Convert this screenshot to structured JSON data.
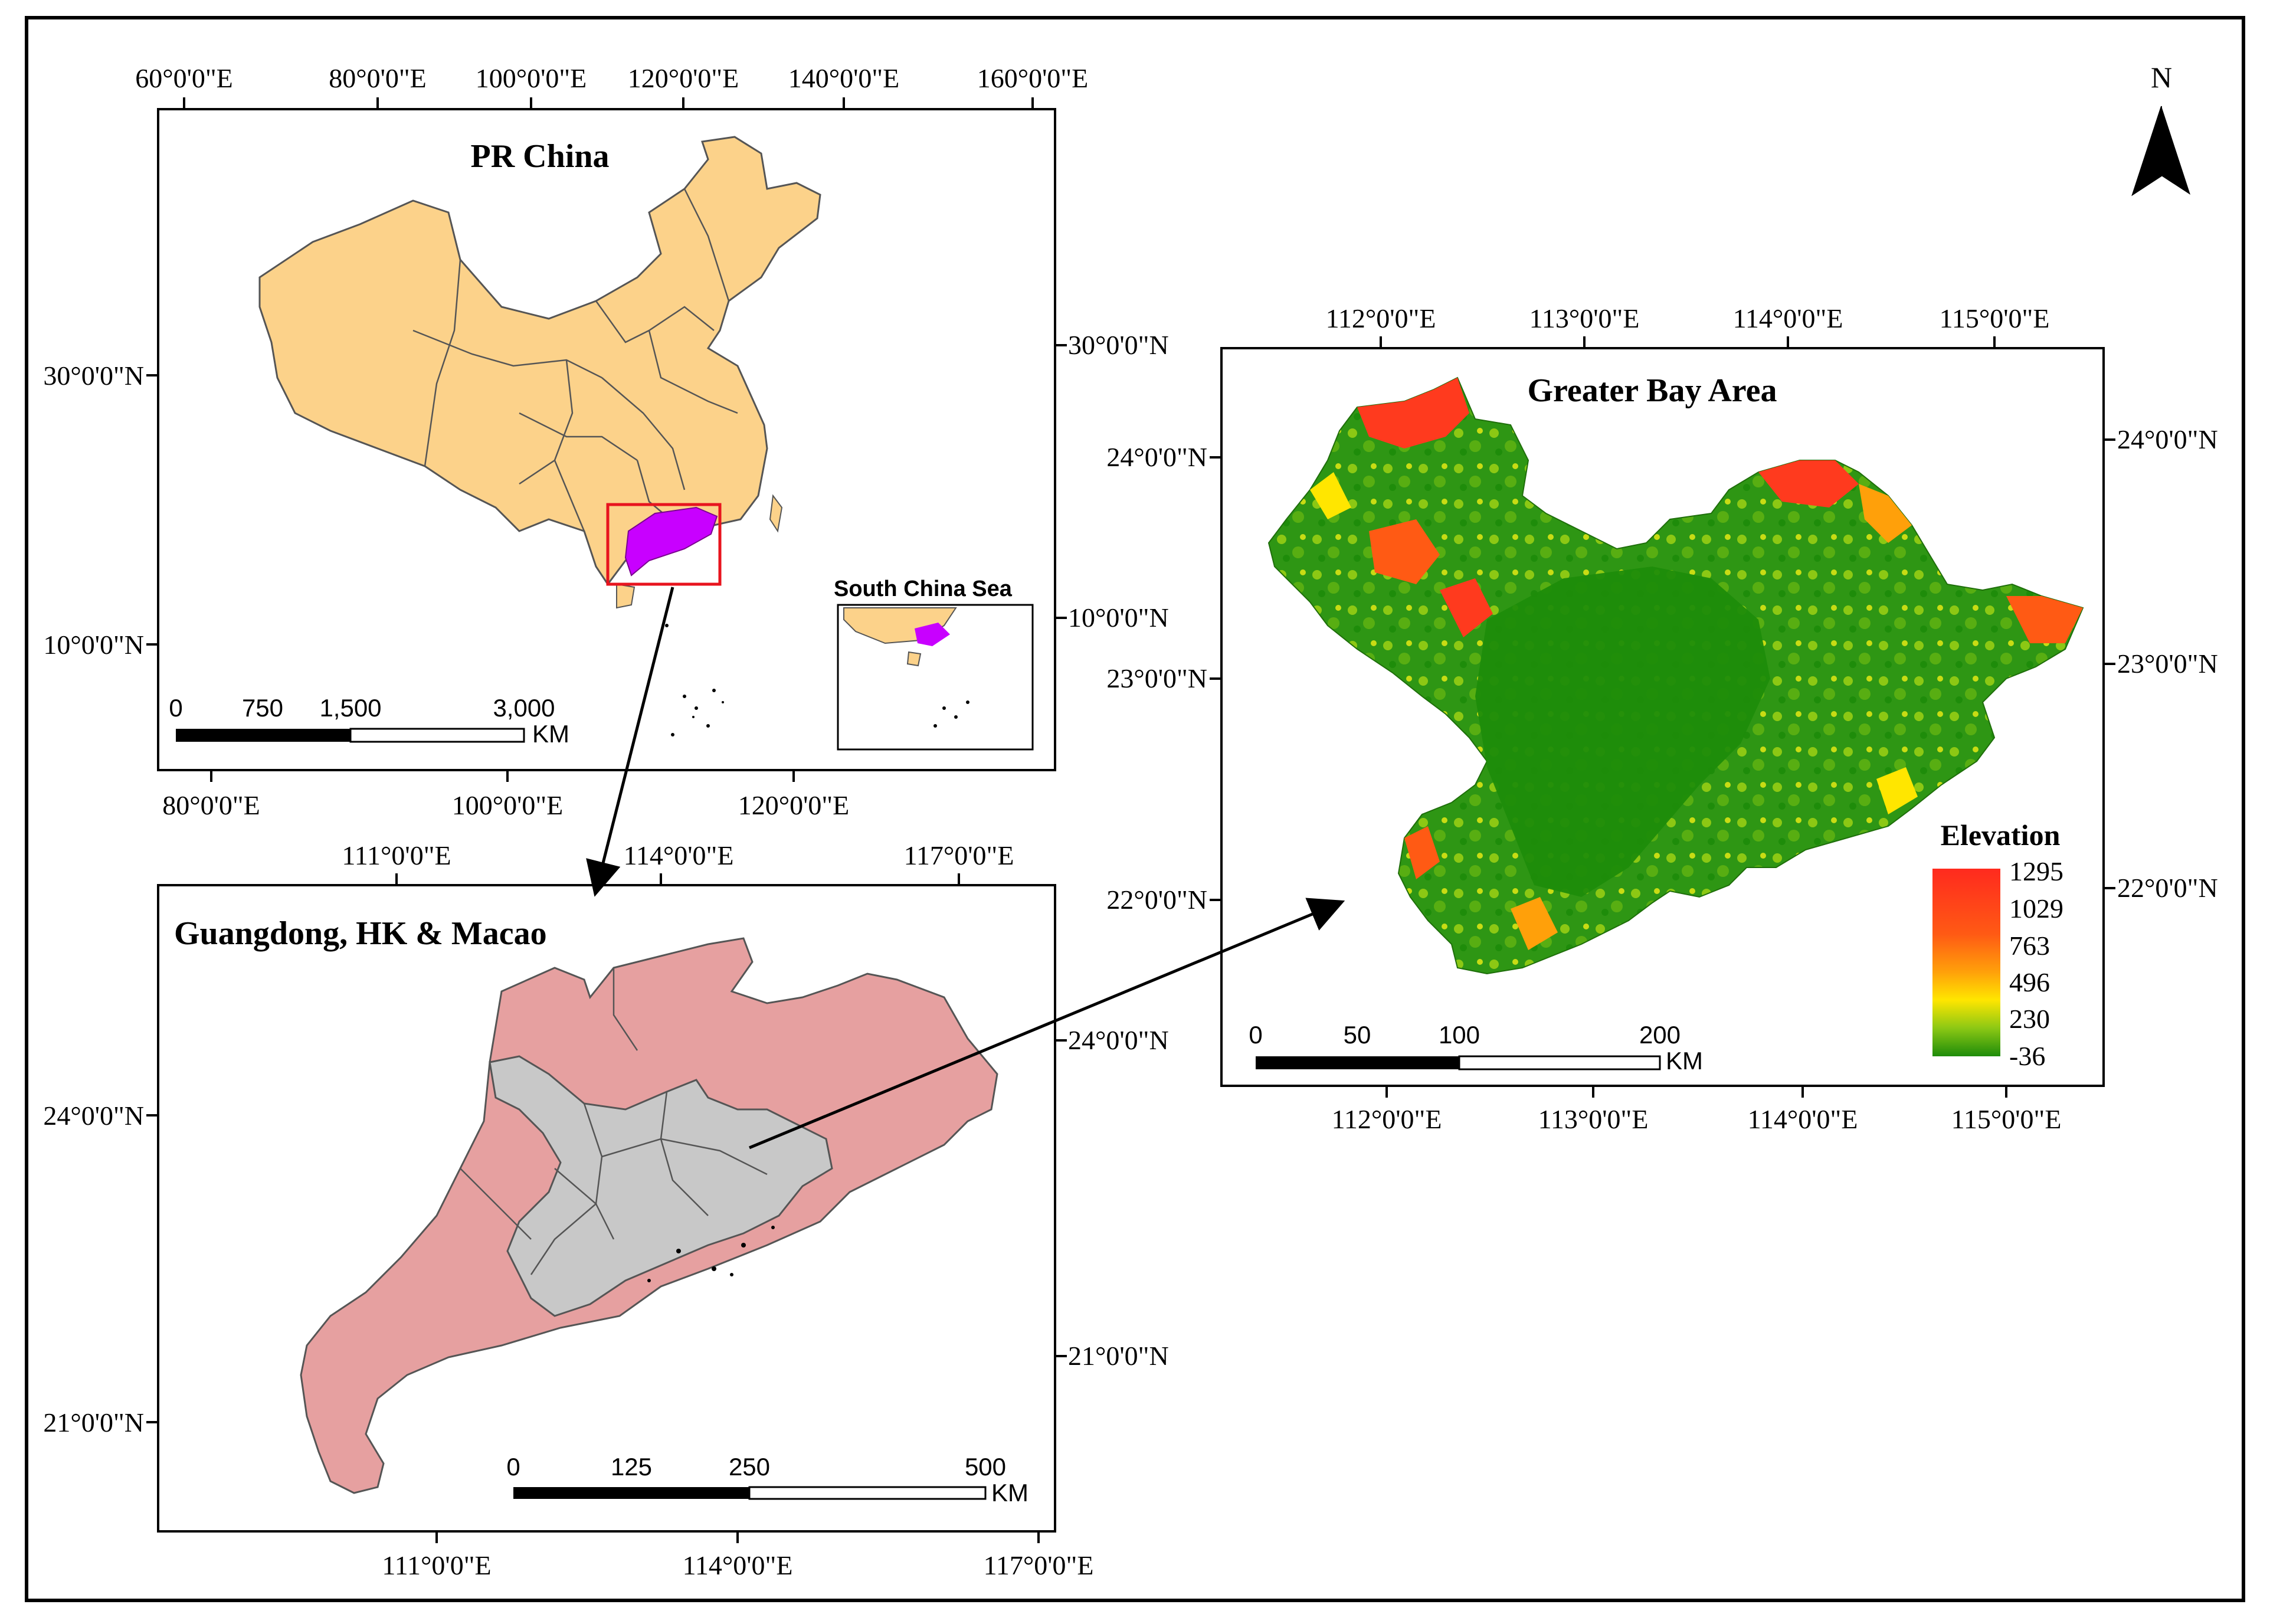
{
  "north_arrow": {
    "label": "N"
  },
  "china_map": {
    "title": "PR China",
    "top_ticks": [
      "60°0'0\"E",
      "80°0'0\"E",
      "100°0'0\"E",
      "120°0'0\"E",
      "140°0'0\"E",
      "160°0'0\"E"
    ],
    "bottom_ticks": [
      "80°0'0\"E",
      "100°0'0\"E",
      "120°0'0\"E"
    ],
    "left_ticks": [
      "30°0'0\"N",
      "10°0'0\"N"
    ],
    "right_ticks": [
      "30°0'0\"N",
      "10°0'0\"N"
    ],
    "scale_numbers": [
      "0",
      "750",
      "1,500",
      "3,000"
    ],
    "scale_unit": "KM",
    "inset_label": "South China Sea",
    "colors": {
      "land": "#fcd28a",
      "highlight": "#c800ff",
      "box": "#e8141e"
    }
  },
  "guangdong_map": {
    "title": "Guangdong, HK & Macao",
    "top_ticks": [
      "111°0'0\"E",
      "114°0'0\"E",
      "117°0'0\"E"
    ],
    "bottom_ticks": [
      "111°0'0\"E",
      "114°0'0\"E",
      "117°0'0\"E"
    ],
    "left_ticks": [
      "24°0'0\"N",
      "21°0'0\"N"
    ],
    "right_ticks": [
      "24°0'0\"N",
      "21°0'0\"N"
    ],
    "scale_numbers": [
      "0",
      "125",
      "250",
      "500"
    ],
    "scale_unit": "KM",
    "colors": {
      "province": "#e6a0a0",
      "gba": "#c8c8c8"
    }
  },
  "gba_map": {
    "title": "Greater Bay Area",
    "top_ticks": [
      "112°0'0\"E",
      "113°0'0\"E",
      "114°0'0\"E",
      "115°0'0\"E"
    ],
    "bottom_ticks": [
      "112°0'0\"E",
      "113°0'0\"E",
      "114°0'0\"E",
      "115°0'0\"E"
    ],
    "left_ticks": [
      "24°0'0\"N",
      "23°0'0\"N",
      "22°0'0\"N"
    ],
    "right_ticks": [
      "24°0'0\"N",
      "23°0'0\"N",
      "22°0'0\"N"
    ],
    "scale_numbers": [
      "0",
      "50",
      "100",
      "200"
    ],
    "scale_unit": "KM",
    "legend": {
      "title": "Elevation",
      "values": [
        "1295",
        "1029",
        "763",
        "496",
        "230",
        "-36"
      ],
      "colors": [
        "#ff2a1e",
        "#ff5a14",
        "#ffa00a",
        "#ffe600",
        "#8cc814",
        "#1e8c0a"
      ]
    }
  }
}
